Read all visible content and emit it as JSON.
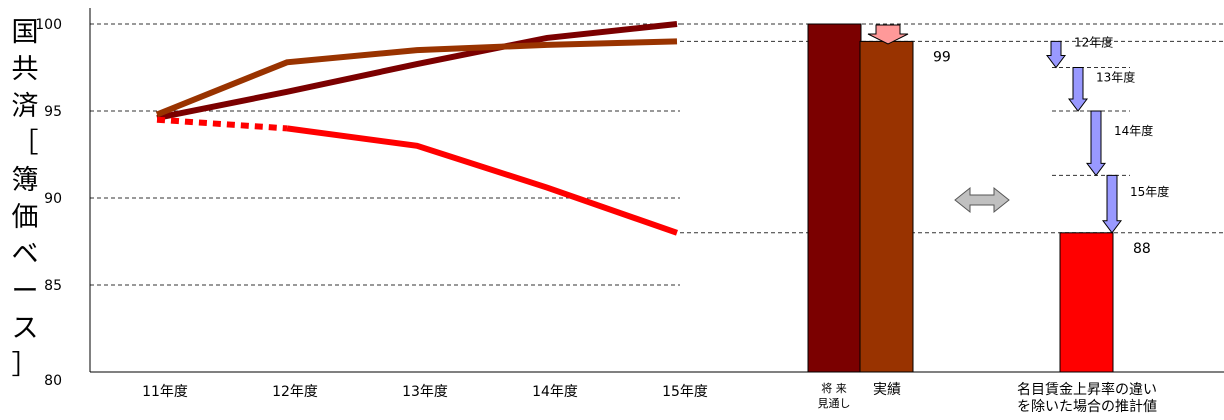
{
  "chart_data": {
    "type": "line",
    "ylabel": "国共済［簿価ベース］",
    "ylim": [
      80,
      100
    ],
    "yticks": [
      80,
      85,
      90,
      95,
      100
    ],
    "categories": [
      "11年度",
      "12年度",
      "13年度",
      "14年度",
      "15年度"
    ],
    "series": [
      {
        "color": "#7b0000",
        "values": [
          94.6,
          96.1,
          97.7,
          99.2,
          100
        ],
        "style": "solid"
      },
      {
        "color": "#993300",
        "values": [
          94.8,
          97.8,
          98.5,
          98.8,
          99
        ],
        "style": "solid"
      },
      {
        "color": "#ff0000",
        "values": [
          94.5,
          94.0,
          93.0,
          90.6,
          88
        ],
        "style": "dotted-then-solid"
      }
    ],
    "bars": [
      {
        "label": "将 来\n見通し",
        "value": 100,
        "color": "#7b0000"
      },
      {
        "label": "実績",
        "value": 99,
        "color": "#993300",
        "data_label": "99"
      },
      {
        "label": "名目賃金上昇率の違い\nを除いた場合の推計値",
        "value": 88,
        "color": "#ff0000",
        "data_label": "88"
      }
    ],
    "waterfall_steps": [
      {
        "label": "12年度",
        "from": 99,
        "to": 97.5
      },
      {
        "label": "13年度",
        "from": 97.5,
        "to": 95
      },
      {
        "label": "14年度",
        "from": 95,
        "to": 91.3
      },
      {
        "label": "15年度",
        "from": 91.3,
        "to": 88
      }
    ],
    "arrow_colors": {
      "down": "#9999ff",
      "top_small": "#ff9999",
      "double": "#c0c0c0"
    },
    "grid_color": "#333333"
  }
}
